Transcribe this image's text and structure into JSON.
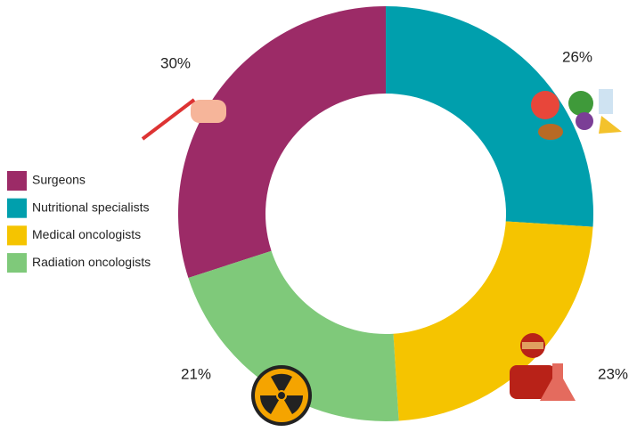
{
  "chart_data": {
    "type": "donut",
    "categories": [
      "Surgeons",
      "Nutritional specialists",
      "Medical oncologists",
      "Radiation oncologists"
    ],
    "values": [
      30,
      26,
      23,
      21
    ],
    "value_labels": [
      "30%",
      "26%",
      "23%",
      "21%"
    ],
    "colors": [
      "#9c2b67",
      "#009fad",
      "#f5c400",
      "#7fc97a"
    ],
    "legend": "left"
  }
}
